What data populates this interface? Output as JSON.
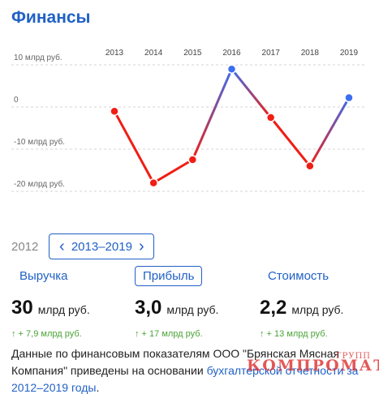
{
  "header": {
    "title": "Финансы"
  },
  "chart_data": {
    "type": "line",
    "title": "",
    "x": [
      "2013",
      "2014",
      "2015",
      "2016",
      "2017",
      "2018",
      "2019"
    ],
    "series": [
      {
        "values": [
          -1,
          -18,
          -12.5,
          9,
          -2.5,
          -14,
          2.2
        ]
      }
    ],
    "y_ticks": [
      {
        "value": 10,
        "label": "10 млрд руб."
      },
      {
        "value": 0,
        "label": "0"
      },
      {
        "value": -10,
        "label": "-10 млрд руб."
      },
      {
        "value": -20,
        "label": "-20 млрд руб."
      }
    ],
    "ylim": [
      -22,
      12
    ],
    "colors": {
      "negative": "#f01e14",
      "positive": "#3c6ef0",
      "grid": "#d4d4d4",
      "axis_text": "#666666"
    },
    "grid": true,
    "legend": "none"
  },
  "period": {
    "year": "2012",
    "range": "2013–2019",
    "prev_icon": "chevron-left-icon",
    "next_icon": "chevron-right-icon"
  },
  "metrics": [
    {
      "tab": "Выручка",
      "value": "30",
      "unit": "млрд руб.",
      "delta": "↑ + 7,9 млрд руб.",
      "active": false
    },
    {
      "tab": "Прибыль",
      "value": "3,0",
      "unit": "млрд руб.",
      "delta": "↑ + 17 млрд руб.",
      "active": true
    },
    {
      "tab": "Стоимость",
      "value": "2,2",
      "unit": "млрд руб.",
      "delta": "↑ + 13 млрд руб.",
      "active": false
    }
  ],
  "description": {
    "text_before": "Данные по финансовым показателям ООО \"Брянская Мясная Компания\" приведены на основании ",
    "link_text": "бухгалтерской отчетности за 2012–2019 годы",
    "text_after": "."
  },
  "watermark": {
    "main": "КОМПРОМАТ",
    "sub": "ГРУПП"
  },
  "colors": {
    "accent": "#2161c6",
    "delta_green": "#4aa336"
  }
}
